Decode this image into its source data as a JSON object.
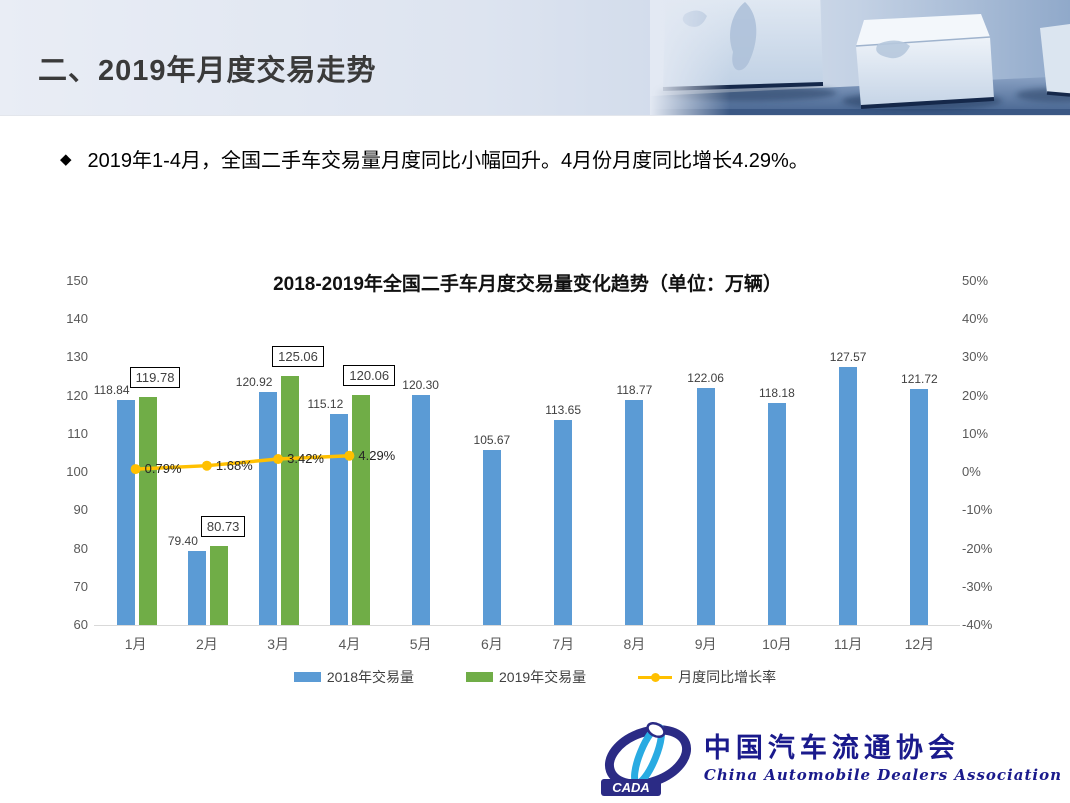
{
  "header": {
    "title": "二、2019年月度交易走势"
  },
  "summary": {
    "bullet_marker": "◆",
    "text": "2019年1-4月，全国二手车交易量月度同比小幅回升。4月份月度同比增长4.29%。"
  },
  "chart_data": {
    "type": "bar",
    "subtype": "grouped-bars-with-line",
    "title": "2018-2019年全国二手车月度交易量变化趋势（单位：万辆）",
    "categories": [
      "1月",
      "2月",
      "3月",
      "4月",
      "5月",
      "6月",
      "7月",
      "8月",
      "9月",
      "10月",
      "11月",
      "12月"
    ],
    "series": [
      {
        "name": "2018年交易量",
        "type": "bar",
        "color": "#5B9BD5",
        "values": [
          118.84,
          79.4,
          120.92,
          115.12,
          120.3,
          105.67,
          113.65,
          118.77,
          122.06,
          118.18,
          127.57,
          121.72
        ]
      },
      {
        "name": "2019年交易量",
        "type": "bar",
        "color": "#70AD47",
        "boxed_labels": true,
        "values": [
          119.78,
          80.73,
          125.06,
          120.06
        ]
      },
      {
        "name": "月度同比增长率",
        "type": "line",
        "color": "#FFC000",
        "values_pct": [
          0.79,
          1.68,
          3.42,
          4.29
        ],
        "labels": [
          "0.79%",
          "1.68%",
          "3.42%",
          "4.29%"
        ]
      }
    ],
    "left_axis": {
      "max": 150,
      "min": 60,
      "step": 10,
      "ticks": [
        "150",
        "140",
        "130",
        "120",
        "110",
        "100",
        "90",
        "80",
        "70",
        "60"
      ]
    },
    "right_axis": {
      "max": 50,
      "min": -40,
      "step": 10,
      "ticks": [
        "50%",
        "40%",
        "30%",
        "20%",
        "10%",
        "0%",
        "-10%",
        "-20%",
        "-30%",
        "-40%"
      ]
    },
    "legend": [
      "2018年交易量",
      "2019年交易量",
      "月度同比增长率"
    ],
    "grid": false,
    "legend_position": "bottom"
  },
  "footer": {
    "logo_acronym": "CADA",
    "org_name_cn": "中国汽车流通协会",
    "org_name_en": "China Automobile Dealers Association"
  },
  "colors": {
    "bar_2018": "#5B9BD5",
    "bar_2019": "#70AD47",
    "growth_line": "#FFC000",
    "axis_text": "#595959",
    "header_band": "#dde4f0"
  }
}
